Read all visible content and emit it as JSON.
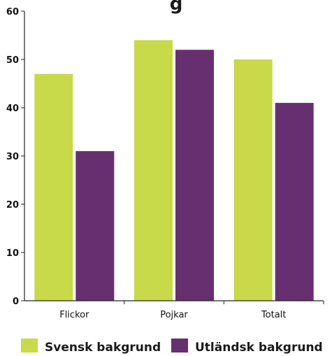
{
  "chart_data": {
    "type": "bar",
    "title": "g",
    "categories": [
      "Flickor",
      "Pojkar",
      "Totalt"
    ],
    "series": [
      {
        "name": "Svensk bakgrund",
        "values": [
          47,
          54,
          50
        ],
        "color": "#c8d94a"
      },
      {
        "name": "Utländsk bakgrund",
        "values": [
          31,
          52,
          41
        ],
        "color": "#663070"
      }
    ],
    "y_ticks": [
      "0",
      "10",
      "20",
      "30",
      "40",
      "50",
      "60"
    ],
    "ylim": [
      0,
      60
    ],
    "grid": false,
    "legend_position": "bottom"
  }
}
